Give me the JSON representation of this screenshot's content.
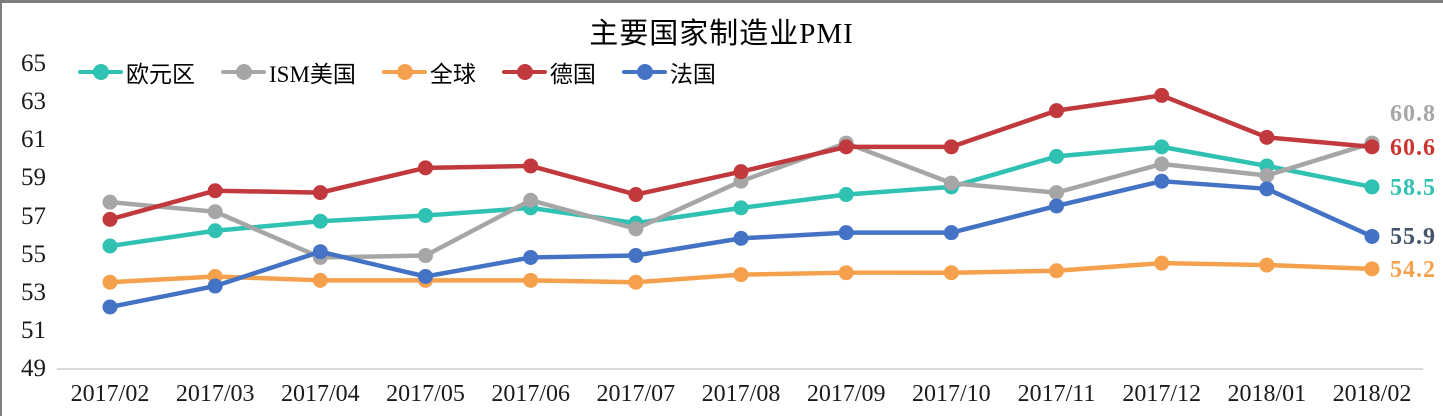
{
  "window": {
    "border_color": "#7f7f7f",
    "background": "#ffffff"
  },
  "chart_data": {
    "type": "line",
    "title": "主要国家制造业PMI",
    "xlabel": "",
    "ylabel": "",
    "grid": false,
    "legend_position": "top-left",
    "ylim": [
      49,
      65
    ],
    "y_ticks": [
      65,
      63,
      61,
      59,
      57,
      55,
      53,
      51,
      49
    ],
    "axis_line_color": "#d9d9d9",
    "categories": [
      "2017/02",
      "2017/03",
      "2017/04",
      "2017/05",
      "2017/06",
      "2017/07",
      "2017/08",
      "2017/09",
      "2017/10",
      "2017/11",
      "2017/12",
      "2018/01",
      "2018/02"
    ],
    "series": [
      {
        "id": "eurozone",
        "name": "欧元区",
        "color": "#2fc1b2",
        "values": [
          55.4,
          56.2,
          56.7,
          57.0,
          57.4,
          56.6,
          57.4,
          58.1,
          58.5,
          60.1,
          60.6,
          59.6,
          58.5
        ],
        "end_label": {
          "text": "58.5",
          "color": "#2fc1b2"
        }
      },
      {
        "id": "ism-us",
        "name": "ISM美国",
        "color": "#a6a6a6",
        "values": [
          57.7,
          57.2,
          54.8,
          54.9,
          57.8,
          56.3,
          58.8,
          60.8,
          58.7,
          58.2,
          59.7,
          59.1,
          60.8
        ],
        "end_label": {
          "text": "60.8",
          "color": "#a6a6a6"
        }
      },
      {
        "id": "global",
        "name": "全球",
        "color": "#f4a04c",
        "values": [
          53.5,
          53.8,
          53.6,
          53.6,
          53.6,
          53.5,
          53.9,
          54.0,
          54.0,
          54.1,
          54.5,
          54.4,
          54.2
        ],
        "end_label": {
          "text": "54.2",
          "color": "#f4a04c"
        }
      },
      {
        "id": "germany",
        "name": "德国",
        "color": "#c1393d",
        "values": [
          56.8,
          58.3,
          58.2,
          59.5,
          59.6,
          58.1,
          59.3,
          60.6,
          60.6,
          62.5,
          63.3,
          61.1,
          60.6
        ],
        "end_label": {
          "text": "60.6",
          "color": "#cb3430"
        }
      },
      {
        "id": "france",
        "name": "法国",
        "color": "#4472c4",
        "values": [
          52.2,
          53.3,
          55.1,
          53.8,
          54.8,
          54.9,
          55.8,
          56.1,
          56.1,
          57.5,
          58.8,
          58.4,
          55.9
        ],
        "end_label": {
          "text": "55.9",
          "color": "#44546a"
        }
      }
    ]
  }
}
